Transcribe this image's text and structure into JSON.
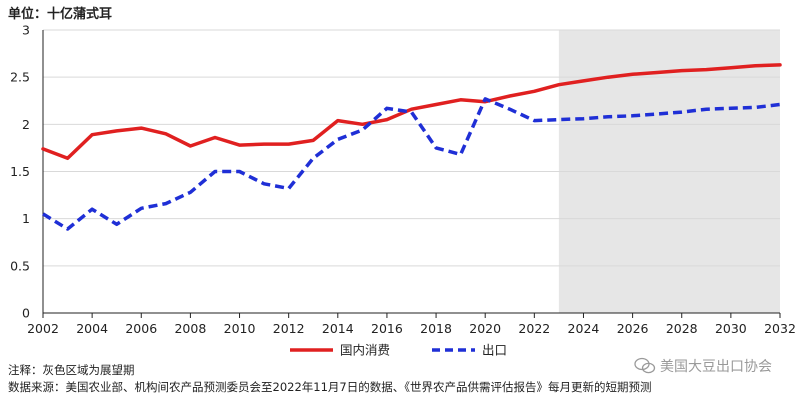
{
  "unit_label": "单位：十亿蒲式耳",
  "chart_data": {
    "type": "line",
    "x": [
      2002,
      2003,
      2004,
      2005,
      2006,
      2007,
      2008,
      2009,
      2010,
      2011,
      2012,
      2013,
      2014,
      2015,
      2016,
      2017,
      2018,
      2019,
      2020,
      2021,
      2022,
      2023,
      2024,
      2025,
      2026,
      2027,
      2028,
      2029,
      2030,
      2031,
      2032
    ],
    "xticks": [
      2002,
      2004,
      2006,
      2008,
      2010,
      2012,
      2014,
      2016,
      2018,
      2020,
      2022,
      2024,
      2026,
      2028,
      2030,
      2032
    ],
    "yticks": [
      "0",
      "0.5",
      "1",
      "1.5",
      "2",
      "2.5",
      "3"
    ],
    "ylim": [
      0,
      3
    ],
    "xlim": [
      2002,
      2032
    ],
    "forecast_shaded_from": 2023,
    "grid": true,
    "series": [
      {
        "name": "国内消费",
        "color": "#e02020",
        "style": "solid",
        "values": [
          1.74,
          1.64,
          1.89,
          1.93,
          1.96,
          1.9,
          1.77,
          1.86,
          1.78,
          1.79,
          1.79,
          1.83,
          2.04,
          2.0,
          2.05,
          2.16,
          2.21,
          2.26,
          2.24,
          2.3,
          2.35,
          2.42,
          2.46,
          2.5,
          2.53,
          2.55,
          2.57,
          2.58,
          2.6,
          2.62,
          2.63
        ]
      },
      {
        "name": "出口",
        "color": "#1f2fd6",
        "style": "dashed",
        "values": [
          1.05,
          0.89,
          1.1,
          0.94,
          1.11,
          1.16,
          1.28,
          1.5,
          1.5,
          1.37,
          1.32,
          1.64,
          1.84,
          1.94,
          2.17,
          2.13,
          1.75,
          1.68,
          2.27,
          2.16,
          2.04,
          2.05,
          2.06,
          2.08,
          2.09,
          2.11,
          2.13,
          2.16,
          2.17,
          2.18,
          2.21
        ]
      }
    ]
  },
  "footnotes": {
    "note": "注释：灰色区域为展望期",
    "source": "数据来源：美国农业部、机构间农产品预测委员会至2022年11月7日的数据、《世界农产品供需评估报告》每月更新的短期预测"
  },
  "watermark": "美国大豆出口协会",
  "colors": {
    "forecast_shade": "#e6e6e6",
    "grid": "#d9d9d9",
    "axis": "#222222"
  },
  "icons": {
    "watermark_icon": "wechat-icon"
  }
}
